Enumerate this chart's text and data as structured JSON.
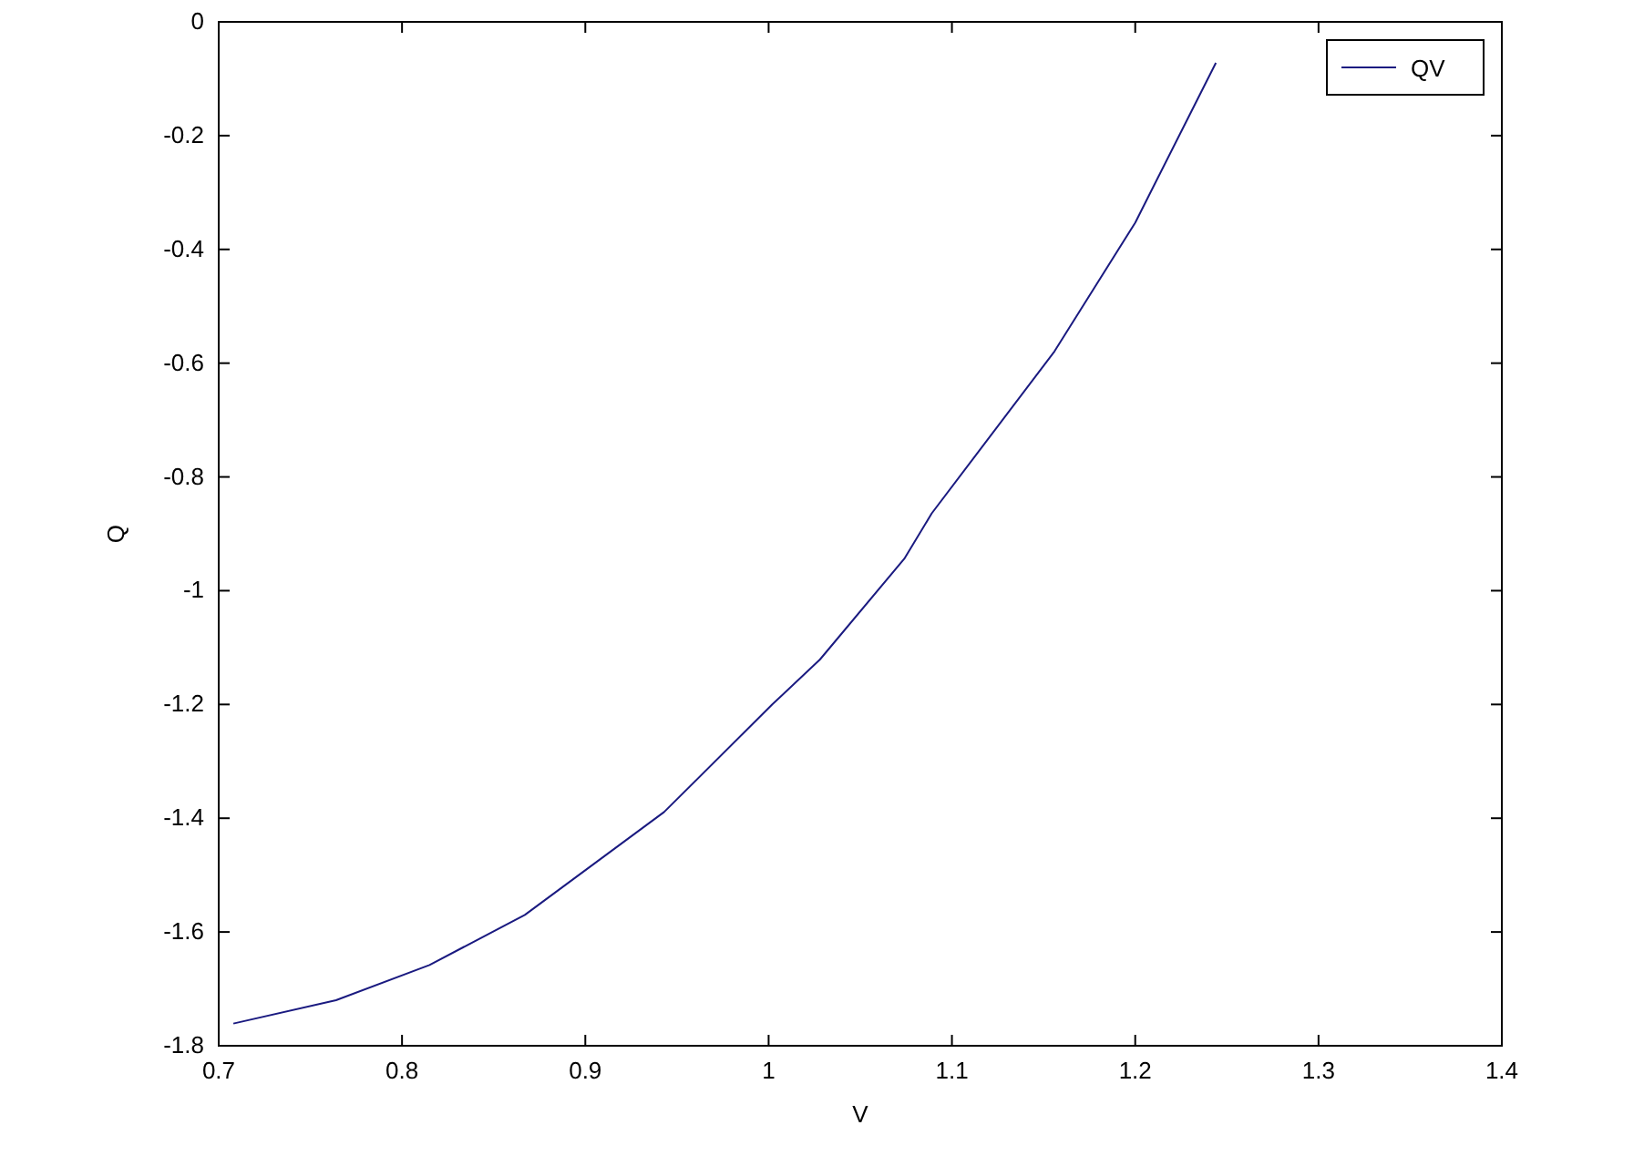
{
  "chart_data": {
    "type": "line",
    "xlabel": "V",
    "ylabel": "Q",
    "x": [
      0.708,
      0.764,
      0.815,
      0.867,
      0.943,
      1.002,
      1.028,
      1.074,
      1.089,
      1.156,
      1.2,
      1.244
    ],
    "series": [
      {
        "name": "QV",
        "color": "#1a1a80",
        "values": [
          -1.761,
          -1.72,
          -1.658,
          -1.57,
          -1.389,
          -1.2,
          -1.121,
          -0.944,
          -0.864,
          -0.579,
          -0.353,
          -0.072
        ]
      }
    ],
    "xlim": [
      0.7,
      1.4
    ],
    "xticks": [
      0.7,
      0.8,
      0.9,
      1,
      1.1,
      1.2,
      1.3,
      1.4
    ],
    "ylim": [
      -1.8,
      0
    ],
    "yticks": [
      -1.8,
      -1.6,
      -1.4,
      -1.2,
      -1,
      -0.8,
      -0.6,
      -0.4,
      -0.2,
      0
    ],
    "grid": false,
    "legend": "top right",
    "marker": "none",
    "line_style": "solid"
  }
}
